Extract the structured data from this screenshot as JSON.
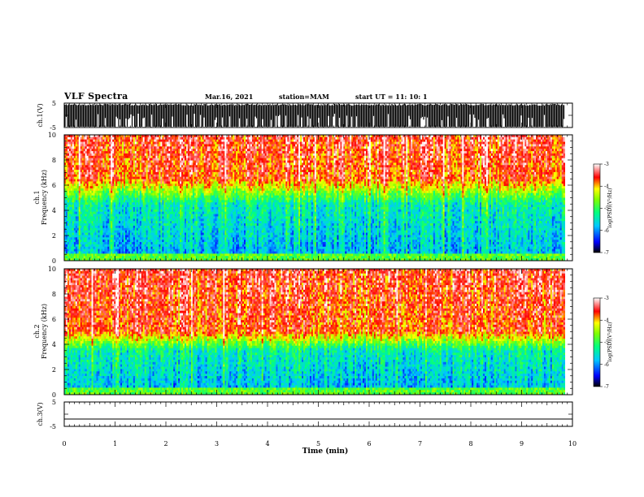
{
  "header": {
    "title": "VLF Spectra",
    "date": "Mar.16, 2021",
    "station": "station=MAM",
    "start": "start  UT  =   11: 10: 1"
  },
  "chart_data": [
    {
      "type": "line",
      "panel": "ch1-waveform",
      "ylabel": "ch.1(V)",
      "y_ticks": [
        "5",
        "-5"
      ],
      "ylim": [
        -5,
        5
      ],
      "xlim": [
        0,
        10
      ],
      "note": "dense waveform bursts"
    },
    {
      "type": "heatmap",
      "panel": "ch1-spectrogram",
      "ylabel_lines": [
        "ch.1",
        "Frequency  (kHz)"
      ],
      "ylim": [
        0,
        10
      ],
      "y_ticks": [
        0,
        2,
        4,
        6,
        8,
        10
      ],
      "xlim": [
        0,
        10
      ],
      "colorbar": {
        "label": "log(PSD)(V²/Hz)",
        "range": [
          -7,
          -3
        ],
        "ticks": [
          -3,
          -4,
          -5,
          -6,
          -7
        ]
      },
      "transition_khz": [
        4.5,
        6.5
      ]
    },
    {
      "type": "heatmap",
      "panel": "ch2-spectrogram",
      "ylabel_lines": [
        "ch.2",
        "Frequency  (kHz)"
      ],
      "ylim": [
        0,
        10
      ],
      "y_ticks": [
        0,
        2,
        4,
        6,
        8,
        10
      ],
      "xlim": [
        0,
        10
      ],
      "colorbar": {
        "label": "log(PSD)(V²/Hz)",
        "range": [
          -7,
          -3
        ],
        "ticks": [
          -3,
          -4,
          -5,
          -6,
          -7
        ]
      },
      "transition_khz": [
        3.5,
        5.0
      ]
    },
    {
      "type": "line",
      "panel": "ch3-waveform",
      "ylabel": "ch.3(V)",
      "y_ticks": [
        "5",
        "-5"
      ],
      "ylim": [
        -5,
        5
      ],
      "xlim": [
        0,
        10
      ],
      "xlabel": "Time  (min)",
      "x_ticks": [
        0,
        1,
        2,
        3,
        4,
        5,
        6,
        7,
        8,
        9,
        10
      ],
      "level_v": -2
    }
  ],
  "colors": {
    "spectrum": [
      "#000080",
      "#0000ff",
      "#0080ff",
      "#00ffff",
      "#00ff80",
      "#00ff00",
      "#ffff00",
      "#ff8000",
      "#ff0000",
      "#ffffff"
    ]
  }
}
